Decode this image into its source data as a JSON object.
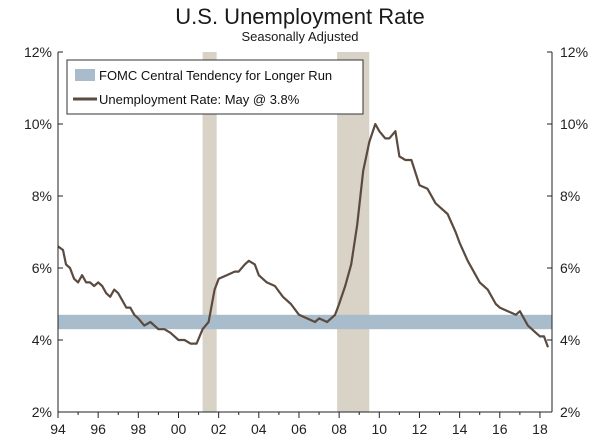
{
  "chart_data": {
    "type": "line",
    "title": "U.S. Unemployment Rate",
    "subtitle": "Seasonally Adjusted",
    "xlabel": "",
    "ylabel": "",
    "xlim": [
      1994.0,
      2018.6
    ],
    "ylim": [
      2,
      12
    ],
    "yticks": [
      2,
      4,
      6,
      8,
      10,
      12
    ],
    "ytick_labels": [
      "2%",
      "4%",
      "6%",
      "8%",
      "10%",
      "12%"
    ],
    "xticks": [
      1994,
      1996,
      1998,
      2000,
      2002,
      2004,
      2006,
      2008,
      2010,
      2012,
      2014,
      2016,
      2018
    ],
    "xtick_labels": [
      "94",
      "96",
      "98",
      "00",
      "02",
      "04",
      "06",
      "08",
      "10",
      "12",
      "14",
      "16",
      "18"
    ],
    "grid": false,
    "legend_position": "top-left",
    "band": {
      "name": "FOMC Central Tendency for Longer Run",
      "y_low": 4.3,
      "y_high": 4.7,
      "color": "#a9bccb"
    },
    "recessions": [
      {
        "start": 2001.2,
        "end": 2001.9
      },
      {
        "start": 2007.9,
        "end": 2009.5
      }
    ],
    "recession_color": "#d8d3c6",
    "series": [
      {
        "name": "Unemployment Rate: May @ 3.8%",
        "color": "#5a4a3f",
        "x": [
          1994.0,
          1994.25,
          1994.4,
          1994.6,
          1994.8,
          1995.0,
          1995.2,
          1995.4,
          1995.6,
          1995.8,
          1996.0,
          1996.2,
          1996.4,
          1996.6,
          1996.8,
          1997.0,
          1997.2,
          1997.4,
          1997.6,
          1997.8,
          1998.0,
          1998.3,
          1998.6,
          1999.0,
          1999.3,
          1999.6,
          2000.0,
          2000.3,
          2000.6,
          2000.9,
          2001.2,
          2001.5,
          2001.8,
          2002.0,
          2002.4,
          2002.8,
          2003.0,
          2003.3,
          2003.5,
          2003.8,
          2004.0,
          2004.4,
          2004.8,
          2005.2,
          2005.6,
          2006.0,
          2006.4,
          2006.8,
          2007.0,
          2007.4,
          2007.8,
          2008.0,
          2008.3,
          2008.6,
          2008.9,
          2009.2,
          2009.5,
          2009.8,
          2010.0,
          2010.3,
          2010.5,
          2010.8,
          2011.0,
          2011.3,
          2011.6,
          2012.0,
          2012.4,
          2012.8,
          2013.0,
          2013.4,
          2013.8,
          2014.0,
          2014.4,
          2014.8,
          2015.0,
          2015.4,
          2015.8,
          2016.0,
          2016.4,
          2016.8,
          2017.0,
          2017.4,
          2017.8,
          2018.0,
          2018.2,
          2018.4
        ],
        "y": [
          6.6,
          6.5,
          6.1,
          6.0,
          5.7,
          5.6,
          5.8,
          5.6,
          5.6,
          5.5,
          5.6,
          5.5,
          5.3,
          5.2,
          5.4,
          5.3,
          5.1,
          4.9,
          4.9,
          4.7,
          4.6,
          4.4,
          4.5,
          4.3,
          4.3,
          4.2,
          4.0,
          4.0,
          3.9,
          3.9,
          4.3,
          4.5,
          5.4,
          5.7,
          5.8,
          5.9,
          5.9,
          6.1,
          6.2,
          6.1,
          5.8,
          5.6,
          5.5,
          5.2,
          5.0,
          4.7,
          4.6,
          4.5,
          4.6,
          4.5,
          4.7,
          5.0,
          5.5,
          6.1,
          7.2,
          8.7,
          9.5,
          10.0,
          9.8,
          9.6,
          9.6,
          9.8,
          9.1,
          9.0,
          9.0,
          8.3,
          8.2,
          7.8,
          7.7,
          7.5,
          7.0,
          6.7,
          6.2,
          5.8,
          5.6,
          5.4,
          5.0,
          4.9,
          4.8,
          4.7,
          4.8,
          4.4,
          4.2,
          4.1,
          4.1,
          3.8
        ]
      }
    ]
  }
}
